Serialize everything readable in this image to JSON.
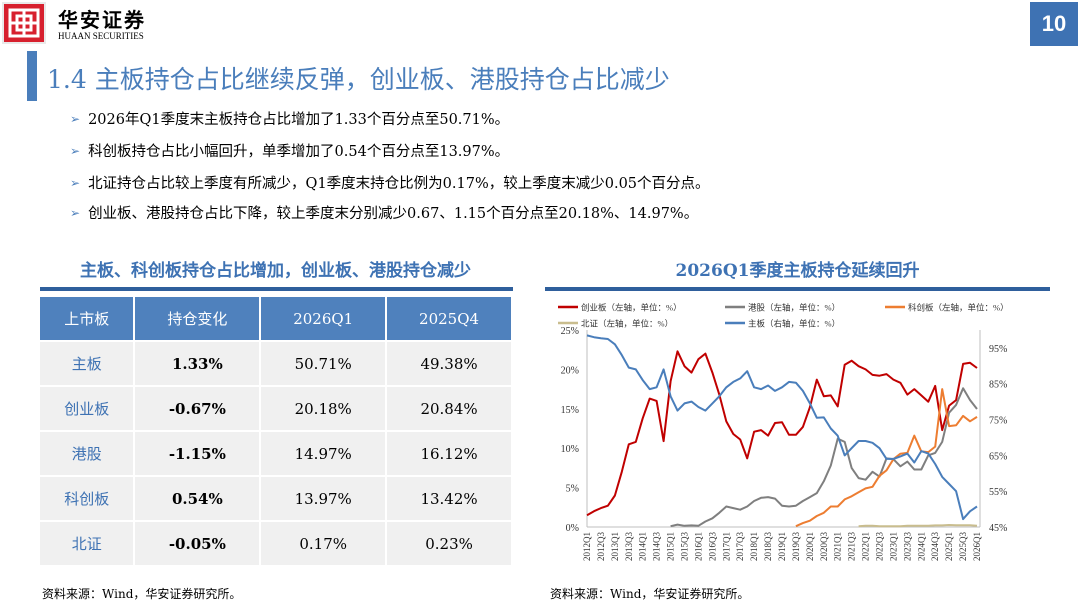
{
  "header": {
    "logo_cn": "华安证券",
    "logo_en": "HUAAN SECURITIES",
    "page_number": "10"
  },
  "title": "1.4 主板持仓占比继续反弹，创业板、港股持仓占比减少",
  "bullets": [
    "2026年Q1季度末主板持仓占比增加了1.33个百分点至50.71%。",
    "科创板持仓占比小幅回升，单季增加了0.54个百分点至13.97%。",
    "北证持仓占比较上季度有所减少，Q1季度末持仓比例为0.17%，较上季度末减少0.05个百分点。",
    "创业板、港股持仓占比下降，较上季度末分别减少0.67、1.15个百分点至20.18%、14.97%。"
  ],
  "table_section": {
    "title": "主板、科创板持仓占比增加，创业板、港股持仓减少",
    "columns": [
      "上市板",
      "持仓变化",
      "2026Q1",
      "2025Q4"
    ],
    "rows": [
      [
        "主板",
        "1.33%",
        "50.71%",
        "49.38%"
      ],
      [
        "创业板",
        "-0.67%",
        "20.18%",
        "20.84%"
      ],
      [
        "港股",
        "-1.15%",
        "14.97%",
        "16.12%"
      ],
      [
        "科创板",
        "0.54%",
        "13.97%",
        "13.42%"
      ],
      [
        "北证",
        "-0.05%",
        "0.17%",
        "0.23%"
      ]
    ],
    "source": "资料来源：Wind，华安证券研究所。"
  },
  "chart_section": {
    "title": "2026Q1季度主板持仓延续回升",
    "source": "资料来源：Wind，华安证券研究所。"
  },
  "chart_data": {
    "type": "line",
    "title": "2026Q1季度主板持仓延续回升",
    "x_tick_labels": [
      "2012Q1",
      "2012Q3",
      "2013Q1",
      "2013Q3",
      "2014Q1",
      "2014Q3",
      "2015Q1",
      "2015Q3",
      "2016Q1",
      "2016Q3",
      "2017Q1",
      "2017Q3",
      "2018Q1",
      "2018Q3",
      "2019Q1",
      "2019Q3",
      "2020Q1",
      "2020Q3",
      "2021Q1",
      "2021Q3",
      "2022Q1",
      "2022Q3",
      "2023Q1",
      "2023Q3",
      "2024Q1",
      "2024Q3",
      "2025Q1",
      "2025Q3",
      "2026Q1"
    ],
    "x_start": "2012Q1",
    "x_end": "2026Q1",
    "left_axis": {
      "ylim": [
        0,
        25
      ],
      "ticks": [
        "0%",
        "5%",
        "10%",
        "15%",
        "20%",
        "25%"
      ]
    },
    "right_axis": {
      "ylim": [
        45,
        100
      ],
      "ticks": [
        "45%",
        "55%",
        "65%",
        "75%",
        "85%",
        "95%"
      ]
    },
    "grid": false,
    "legend": "top",
    "series": [
      {
        "name": "创业板（左轴，单位：%）",
        "axis": "left",
        "color": "#c00000",
        "start": "2012Q1",
        "values": [
          1.5,
          2.0,
          2.4,
          2.7,
          4,
          7,
          10.5,
          10.8,
          13.8,
          16.3,
          16,
          10.9,
          18.5,
          22.3,
          20.4,
          19.6,
          21.3,
          22,
          19.6,
          16.8,
          13.4,
          11.8,
          11.1,
          8.7,
          12.1,
          12.3,
          11.6,
          13.2,
          13.3,
          11.7,
          11.7,
          12.7,
          15.2,
          18.7,
          16.6,
          16.7,
          15.3,
          20.6,
          21.1,
          20.4,
          20.0,
          19.3,
          19.2,
          19.4,
          18.7,
          18.3,
          16.8,
          17.5,
          16.7,
          15.9,
          17.9,
          12.3,
          15.4,
          16.1,
          20.7,
          20.84,
          20.18
        ]
      },
      {
        "name": "港股（左轴，单位：%）",
        "axis": "left",
        "color": "#7f7f7f",
        "start": "2015Q1",
        "values": [
          0.1,
          0.3,
          0.15,
          0.2,
          0.15,
          0.7,
          1.1,
          1.8,
          2.6,
          2.4,
          2.2,
          2.6,
          3.3,
          3.7,
          3.8,
          3.6,
          2.7,
          2.6,
          2.7,
          3.3,
          3.8,
          4.3,
          5.8,
          7.8,
          11.2,
          10.8,
          7.5,
          6.2,
          6.0,
          7.0,
          6.4,
          8.7,
          8.6,
          7.7,
          8.3,
          7.3,
          7.3,
          9.1,
          9.4,
          10.8,
          14.5,
          15.5,
          17.6,
          16.12,
          14.97
        ]
      },
      {
        "name": "科创板（左轴，单位：%）",
        "axis": "left",
        "color": "#ed7d31",
        "start": "2019Q3",
        "values": [
          0.1,
          0.5,
          0.8,
          1.4,
          1.8,
          2.6,
          2.6,
          3.5,
          3.9,
          4.4,
          4.9,
          5.1,
          6.5,
          7.2,
          8.6,
          9.3,
          9.4,
          11.6,
          9.6,
          9.5,
          10.2,
          17.5,
          12.8,
          12.9,
          14.1,
          13.42,
          13.97
        ]
      },
      {
        "name": "北证（左轴，单位：%）",
        "axis": "left",
        "color": "#c9bd8e",
        "start": "2021Q4",
        "values": [
          0.1,
          0.15,
          0.15,
          0.1,
          0.1,
          0.1,
          0.1,
          0.15,
          0.15,
          0.15,
          0.15,
          0.2,
          0.2,
          0.25,
          0.22,
          0.22,
          0.23,
          0.17
        ]
      },
      {
        "name": "主板（右轴，单位：%）",
        "axis": "right",
        "color": "#4a7ebb",
        "start": "2012Q1",
        "values": [
          98.5,
          98,
          97.7,
          97.5,
          96,
          93,
          89.5,
          89,
          86,
          83.5,
          84,
          89,
          81.5,
          77.5,
          79.5,
          80,
          78.5,
          77.5,
          79.5,
          81.5,
          84,
          85.5,
          86.5,
          88.5,
          84,
          83.5,
          84.5,
          83,
          84,
          85.5,
          85.3,
          83,
          79.5,
          75.5,
          75.6,
          72.5,
          70.5,
          65,
          67,
          69,
          69,
          68.5,
          67,
          64,
          64,
          64.7,
          65.5,
          63,
          66.2,
          65.5,
          62.6,
          59,
          57,
          55,
          47.2,
          49.38,
          50.71
        ]
      }
    ]
  }
}
